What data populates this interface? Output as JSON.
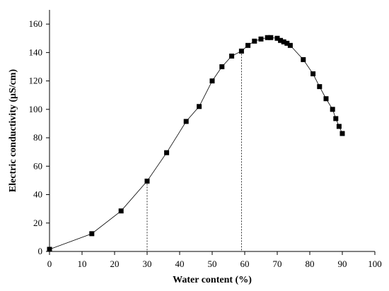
{
  "chart_data": {
    "type": "line",
    "title": "",
    "xlabel": "Water content (%)",
    "ylabel": "Electric conductivity (μS/cm)",
    "xlim": [
      0,
      100
    ],
    "ylim": [
      0,
      170
    ],
    "x_ticks": [
      0,
      10,
      20,
      30,
      40,
      50,
      60,
      70,
      80,
      90,
      100
    ],
    "y_ticks": [
      0,
      20,
      40,
      60,
      80,
      100,
      120,
      140,
      160
    ],
    "grid": false,
    "legend": "none",
    "marker": "square",
    "series": [
      {
        "x": [
          0,
          13,
          22,
          30,
          36,
          42,
          46,
          50,
          53,
          56,
          59,
          61,
          63,
          65,
          67,
          68,
          70,
          71,
          72,
          73,
          74,
          78,
          81,
          83,
          85,
          87,
          88,
          89,
          90
        ],
        "y": [
          1.5,
          12.5,
          28.5,
          49.5,
          69.5,
          91.5,
          102,
          120,
          130,
          137.5,
          141,
          145,
          148,
          149.5,
          150.5,
          150.5,
          150,
          148.5,
          147.5,
          146.5,
          145,
          135,
          125,
          116,
          107.5,
          100,
          93.5,
          88,
          83
        ]
      }
    ],
    "reference_lines": [
      {
        "x": 30,
        "y": 49.5
      },
      {
        "x": 59,
        "y": 141
      }
    ]
  }
}
